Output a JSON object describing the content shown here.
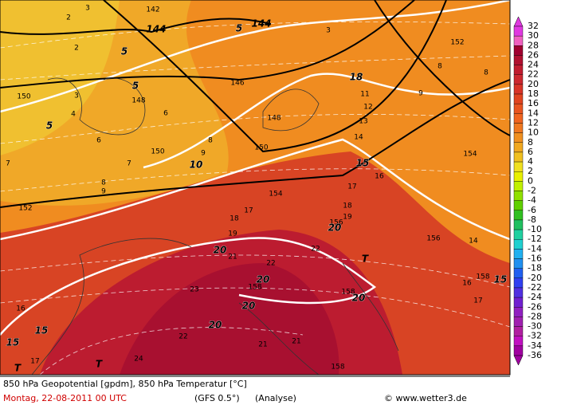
{
  "map_labels": [
    "142",
    "144",
    "5",
    "144",
    "5",
    "5",
    "5",
    "146",
    "148",
    "148",
    "150",
    "150",
    "150",
    "152",
    "152",
    "154",
    "154",
    "156",
    "156",
    "158",
    "158",
    "158",
    "158",
    "10",
    "15",
    "18",
    "20",
    "20",
    "20",
    "20",
    "20",
    "20",
    "15",
    "15",
    "15",
    "22",
    "22",
    "23",
    "22",
    "21",
    "21",
    "24",
    "16",
    "17",
    "18",
    "17",
    "19",
    "21",
    "17",
    "18",
    "19",
    "16",
    "14",
    "13",
    "12",
    "11",
    "9",
    "8",
    "8",
    "6",
    "6",
    "7",
    "7",
    "8",
    "9",
    "8",
    "9",
    "T",
    "T",
    "T",
    "17",
    "16",
    "14",
    "2",
    "3",
    "2",
    "3",
    "4",
    "3"
  ],
  "colorbar": {
    "labels": [
      32,
      30,
      28,
      26,
      24,
      22,
      20,
      18,
      16,
      14,
      12,
      10,
      8,
      6,
      4,
      2,
      0,
      -2,
      -4,
      -6,
      -8,
      -10,
      -12,
      -14,
      -16,
      -18,
      -20,
      -22,
      -24,
      -26,
      -28,
      -30,
      -32,
      -34,
      -36
    ]
  },
  "footer": {
    "line1": "850 hPa Geopotential [gpdm], 850 hPa Temperatur [°C]",
    "date": "Montag, 22-08-2011  00 UTC",
    "model": "(GFS 0.5°)",
    "run": "(Analyse)",
    "credit": "© www.wetter3.de"
  }
}
